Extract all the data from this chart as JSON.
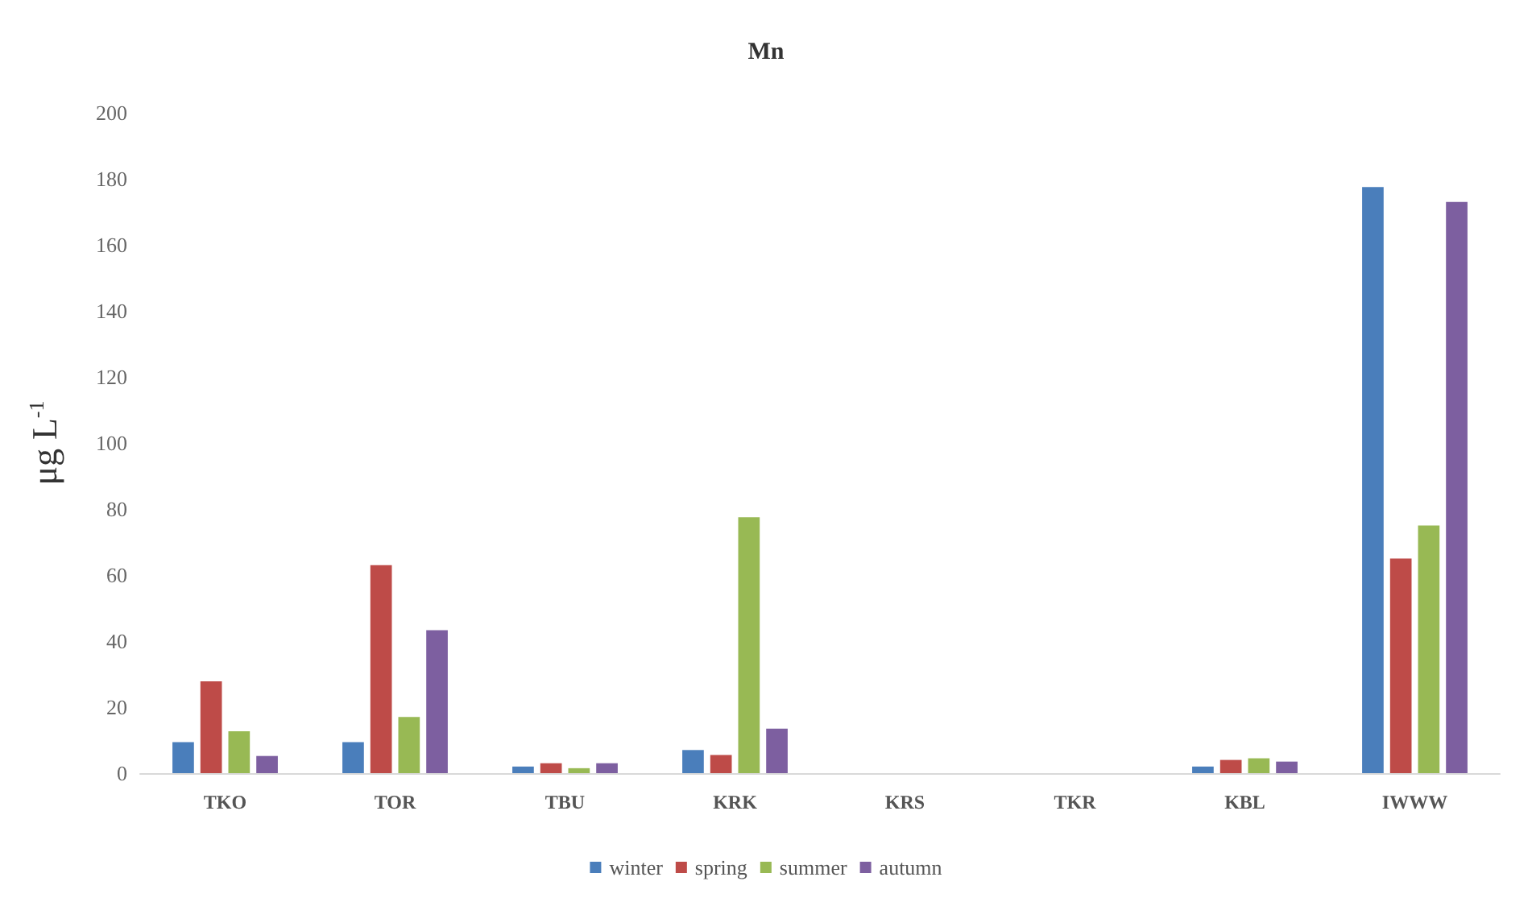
{
  "chart_data": {
    "type": "bar",
    "title": "Mn",
    "ylabel": "μg L$^{-1}$",
    "categories": [
      "TKO",
      "TOR",
      "TBU",
      "KRK",
      "KRS",
      "TKR",
      "KBL",
      "IWWW"
    ],
    "series": [
      {
        "name": "winter",
        "color": "#4a7ebb",
        "values": [
          9.4,
          9.4,
          2,
          7,
          null,
          null,
          2,
          177.5
        ]
      },
      {
        "name": "spring",
        "color": "#be4b48",
        "values": [
          27.8,
          63,
          3,
          5.5,
          null,
          null,
          4,
          65
        ]
      },
      {
        "name": "summer",
        "color": "#98b954",
        "values": [
          12.7,
          17,
          1.5,
          77.5,
          null,
          null,
          4.5,
          75
        ]
      },
      {
        "name": "autumn",
        "color": "#7d5fa0",
        "values": [
          5.2,
          43.3,
          3,
          13.5,
          null,
          null,
          3.5,
          173
        ]
      }
    ],
    "ylim": [
      0,
      200
    ],
    "yticks": [
      0,
      20,
      40,
      60,
      80,
      100,
      120,
      140,
      160,
      180,
      200
    ],
    "grid": false,
    "legend": "bottom"
  }
}
